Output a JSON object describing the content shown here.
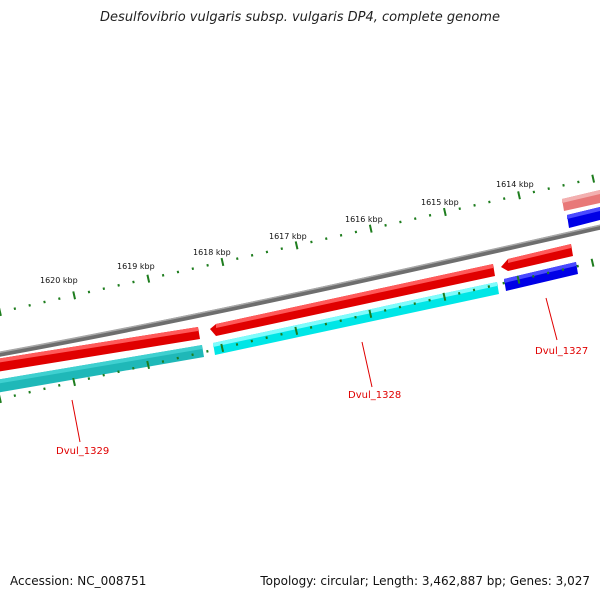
{
  "title": "Desulfovibrio vulgaris subsp. vulgaris DP4, complete genome",
  "footer": {
    "accession": "Accession: NC_008751",
    "stats": "Topology: circular; Length: 3,462,887 bp; Genes: 3,027"
  },
  "map": {
    "topology": "circular",
    "scale_labels": [
      "1614 kbp",
      "1615 kbp",
      "1616 kbp",
      "1617 kbp",
      "1618 kbp",
      "1619 kbp",
      "1620 kbp"
    ],
    "colors": {
      "backbone": "#808080",
      "tick": "#1e7d1e",
      "gene_red": "#ff0000",
      "gene_red_faded": "#e87878",
      "gene_cyan": "#00ffff",
      "gene_teal": "#1fb8b8",
      "gene_blue": "#0000ff",
      "label": "#e00000"
    },
    "genes": [
      {
        "name": "Dvul_1327"
      },
      {
        "name": "Dvul_1328"
      },
      {
        "name": "Dvul_1329"
      }
    ]
  }
}
